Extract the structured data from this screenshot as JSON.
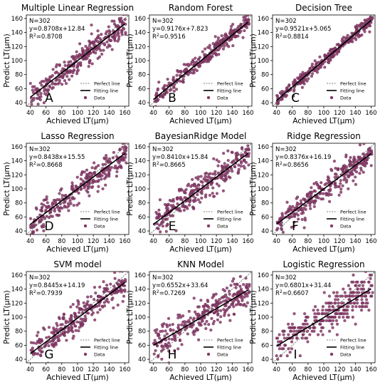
{
  "legend": {
    "perfect": "Perfect line",
    "fitting": "Fitting line",
    "data": "Data"
  },
  "colors": {
    "point": "#8a3c6a",
    "point_edge": "#5a1f44",
    "fit": "#000000",
    "perfect": "#555555"
  },
  "chart_data": [
    {
      "type": "scatter",
      "title": "Multiple Linear Regression",
      "letter": "A",
      "n_text": "N=302",
      "eq_text": "y=0.8708x+12.84",
      "r2_text": "0.8708",
      "slope": 0.8708,
      "intercept": 12.84,
      "spread": 10,
      "quantized": false,
      "seed": 1,
      "xlabel": "Achieved LT(μm)",
      "ylabel": "Predict LT(μm)",
      "xlim": [
        35,
        165
      ],
      "ylim": [
        35,
        165
      ],
      "xticks": [
        40,
        60,
        80,
        100,
        120,
        140,
        160
      ],
      "yticks": [
        40,
        60,
        80,
        100,
        120,
        140,
        160
      ]
    },
    {
      "type": "scatter",
      "title": "Random Forest",
      "letter": "B",
      "n_text": "N=302",
      "eq_text": "y=0.9176x+7.823",
      "r2_text": "0.9516",
      "slope": 0.9176,
      "intercept": 7.823,
      "spread": 6,
      "quantized": false,
      "seed": 2,
      "xlabel": "Achieved LT(μm)",
      "ylabel": "Predict LT(μm)",
      "xlim": [
        35,
        165
      ],
      "ylim": [
        35,
        165
      ],
      "xticks": [
        40,
        60,
        80,
        100,
        120,
        140,
        160
      ],
      "yticks": [
        40,
        60,
        80,
        100,
        120,
        140,
        160
      ]
    },
    {
      "type": "scatter",
      "title": "Decision Tree",
      "letter": "C",
      "n_text": "N=302",
      "eq_text": "y=0.9521x+5.065",
      "r2_text": "0.8814",
      "slope": 0.9521,
      "intercept": 5.065,
      "spread": 5,
      "quantized": false,
      "seed": 3,
      "xlabel": "Achieved LT(μm)",
      "ylabel": "Predict LT(μm)",
      "xlim": [
        35,
        165
      ],
      "ylim": [
        35,
        165
      ],
      "xticks": [
        40,
        60,
        80,
        100,
        120,
        140,
        160
      ],
      "yticks": [
        40,
        60,
        80,
        100,
        120,
        140,
        160
      ]
    },
    {
      "type": "scatter",
      "title": "Lasso Regression",
      "letter": "D",
      "n_text": "N=302",
      "eq_text": "y=0.8438x+15.55",
      "r2_text": "0.8668",
      "slope": 0.8438,
      "intercept": 15.55,
      "spread": 10,
      "quantized": false,
      "seed": 4,
      "xlabel": "Achieved LT(μm)",
      "ylabel": "Predict LT(μm)",
      "xlim": [
        35,
        165
      ],
      "ylim": [
        35,
        165
      ],
      "xticks": [
        40,
        60,
        80,
        100,
        120,
        140,
        160
      ],
      "yticks": [
        40,
        60,
        80,
        100,
        120,
        140,
        160
      ]
    },
    {
      "type": "scatter",
      "title": "BayesianRidge Model",
      "letter": "E",
      "n_text": "N=302",
      "eq_text": "y=0.8410x+15.84",
      "r2_text": "0.8665",
      "slope": 0.841,
      "intercept": 15.84,
      "spread": 10,
      "quantized": false,
      "seed": 5,
      "xlabel": "Achieved LT(μm)",
      "ylabel": "Predict LT(μm)",
      "xlim": [
        35,
        165
      ],
      "ylim": [
        35,
        165
      ],
      "xticks": [
        40,
        60,
        80,
        100,
        120,
        140,
        160
      ],
      "yticks": [
        40,
        60,
        80,
        100,
        120,
        140,
        160
      ]
    },
    {
      "type": "scatter",
      "title": "Ridge Regression",
      "letter": "F",
      "n_text": "N=302",
      "eq_text": "y=0.8376x+16.19",
      "r2_text": "0.8656",
      "slope": 0.8376,
      "intercept": 16.19,
      "spread": 10,
      "quantized": false,
      "seed": 6,
      "xlabel": "Achieved LT(μm)",
      "ylabel": "Predict LT(μm)",
      "xlim": [
        35,
        165
      ],
      "ylim": [
        35,
        165
      ],
      "xticks": [
        40,
        60,
        80,
        100,
        120,
        140,
        160
      ],
      "yticks": [
        40,
        60,
        80,
        100,
        120,
        140,
        160
      ]
    },
    {
      "type": "scatter",
      "title": "SVM model",
      "letter": "G",
      "n_text": "N=302",
      "eq_text": "y=0.8445x+14.19",
      "r2_text": "0.7939",
      "slope": 0.8445,
      "intercept": 14.19,
      "spread": 11,
      "quantized": false,
      "seed": 7,
      "xlabel": "Achieved LT(μm)",
      "ylabel": "Predict LT(μm)",
      "xlim": [
        35,
        165
      ],
      "ylim": [
        35,
        165
      ],
      "xticks": [
        40,
        60,
        80,
        100,
        120,
        140,
        160
      ],
      "yticks": [
        40,
        60,
        80,
        100,
        120,
        140,
        160
      ]
    },
    {
      "type": "scatter",
      "title": "KNN Model",
      "letter": "H",
      "n_text": "N=302",
      "eq_text": "y=0.6552x+33.64",
      "r2_text": "0.7269",
      "slope": 0.6552,
      "intercept": 33.64,
      "spread": 12,
      "quantized": false,
      "seed": 8,
      "xlabel": "Achieved LT(μm)",
      "ylabel": "Predict LT(μm)",
      "xlim": [
        35,
        165
      ],
      "ylim": [
        35,
        165
      ],
      "xticks": [
        40,
        60,
        80,
        100,
        120,
        140,
        160
      ],
      "yticks": [
        40,
        60,
        80,
        100,
        120,
        140,
        160
      ]
    },
    {
      "type": "scatter",
      "title": "Logistic Regression",
      "letter": "I",
      "n_text": "N=302",
      "eq_text": "y=0.6801x+31.44",
      "r2_text": "0.6607",
      "slope": 0.6801,
      "intercept": 31.44,
      "spread": 12,
      "quantized": true,
      "seed": 9,
      "xlabel": "Achieved LT(μm)",
      "ylabel": "Predict LT(μm)",
      "xlim": [
        35,
        165
      ],
      "ylim": [
        35,
        165
      ],
      "xticks": [
        40,
        60,
        80,
        100,
        120,
        140,
        160
      ],
      "yticks": [
        40,
        60,
        80,
        100,
        120,
        140,
        160
      ]
    }
  ]
}
